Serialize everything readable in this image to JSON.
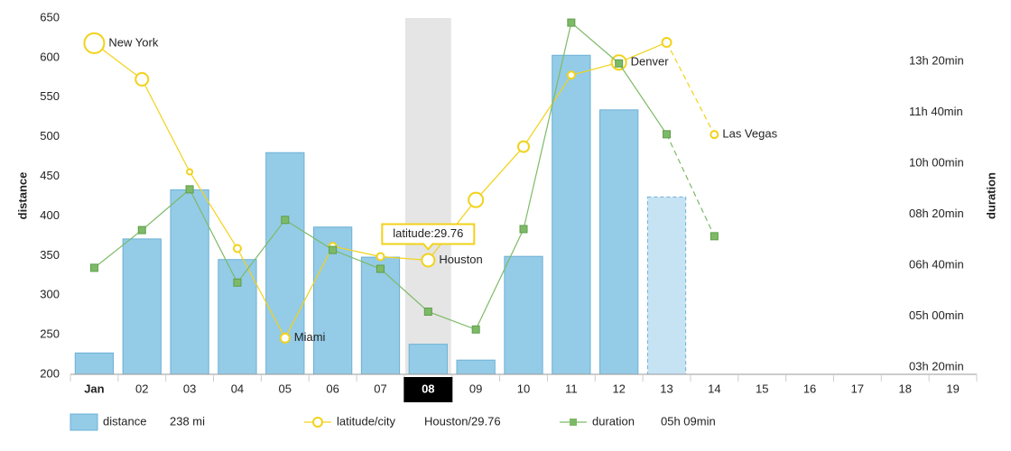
{
  "chart_data": {
    "type": "bar-line",
    "categories": [
      "Jan",
      "02",
      "03",
      "04",
      "05",
      "06",
      "07",
      "08",
      "09",
      "10",
      "11",
      "12",
      "13",
      "14",
      "15",
      "16",
      "17",
      "18",
      "19"
    ],
    "ylabel": "distance",
    "y2label": "duration",
    "ylim": [
      200,
      650
    ],
    "yticks": [
      200,
      250,
      300,
      350,
      400,
      450,
      500,
      550,
      600,
      650
    ],
    "y2lim": [
      186,
      885
    ],
    "y2ticks": [
      {
        "value": 200,
        "label": "03h 20min"
      },
      {
        "value": 300,
        "label": "05h 00min"
      },
      {
        "value": 400,
        "label": "06h 40min"
      },
      {
        "value": 500,
        "label": "08h 20min"
      },
      {
        "value": 600,
        "label": "10h 00min"
      },
      {
        "value": 700,
        "label": "11h 40min"
      },
      {
        "value": 800,
        "label": "13h 20min"
      }
    ],
    "y3lim": [
      24.0,
      41.98
    ],
    "cursor_index": 7,
    "dash_start_index": 12,
    "tooltip": "latitude:29.76",
    "series": [
      {
        "name": "distance",
        "type": "bar",
        "color": "#94cbe7",
        "stroke": "#6db1d6",
        "legend_value": "238 mi",
        "values": [
          227,
          371,
          433,
          345,
          480,
          386,
          348,
          238,
          218,
          349,
          603,
          534,
          424,
          null,
          null,
          null,
          null,
          null,
          null
        ]
      },
      {
        "name": "latitude/city",
        "type": "line",
        "axis": "y3",
        "color": "#f2d21a",
        "legend_value": "Houston/29.76",
        "values": [
          40.71,
          38.89,
          34.22,
          30.35,
          25.83,
          30.46,
          29.94,
          29.76,
          32.8,
          35.49,
          39.1,
          39.74,
          40.75,
          36.1,
          null,
          null,
          null,
          null,
          null
        ],
        "sizes": [
          11,
          7,
          3,
          4,
          5,
          4,
          4,
          7,
          8,
          6,
          4,
          8,
          5,
          4,
          null,
          null,
          null,
          null,
          null
        ],
        "cities": [
          "New York",
          null,
          null,
          null,
          "Miami",
          null,
          null,
          "Houston",
          null,
          null,
          null,
          "Denver",
          null,
          "Las Vegas",
          null,
          null,
          null,
          null,
          null
        ]
      },
      {
        "name": "duration",
        "type": "line",
        "axis": "y2",
        "color": "#7dba67",
        "legend_value": "05h 09min",
        "values": [
          395,
          469,
          549,
          366,
          489,
          430,
          393,
          309,
          274,
          471,
          876,
          796,
          657,
          457,
          null,
          null,
          null,
          null,
          null
        ]
      }
    ]
  }
}
